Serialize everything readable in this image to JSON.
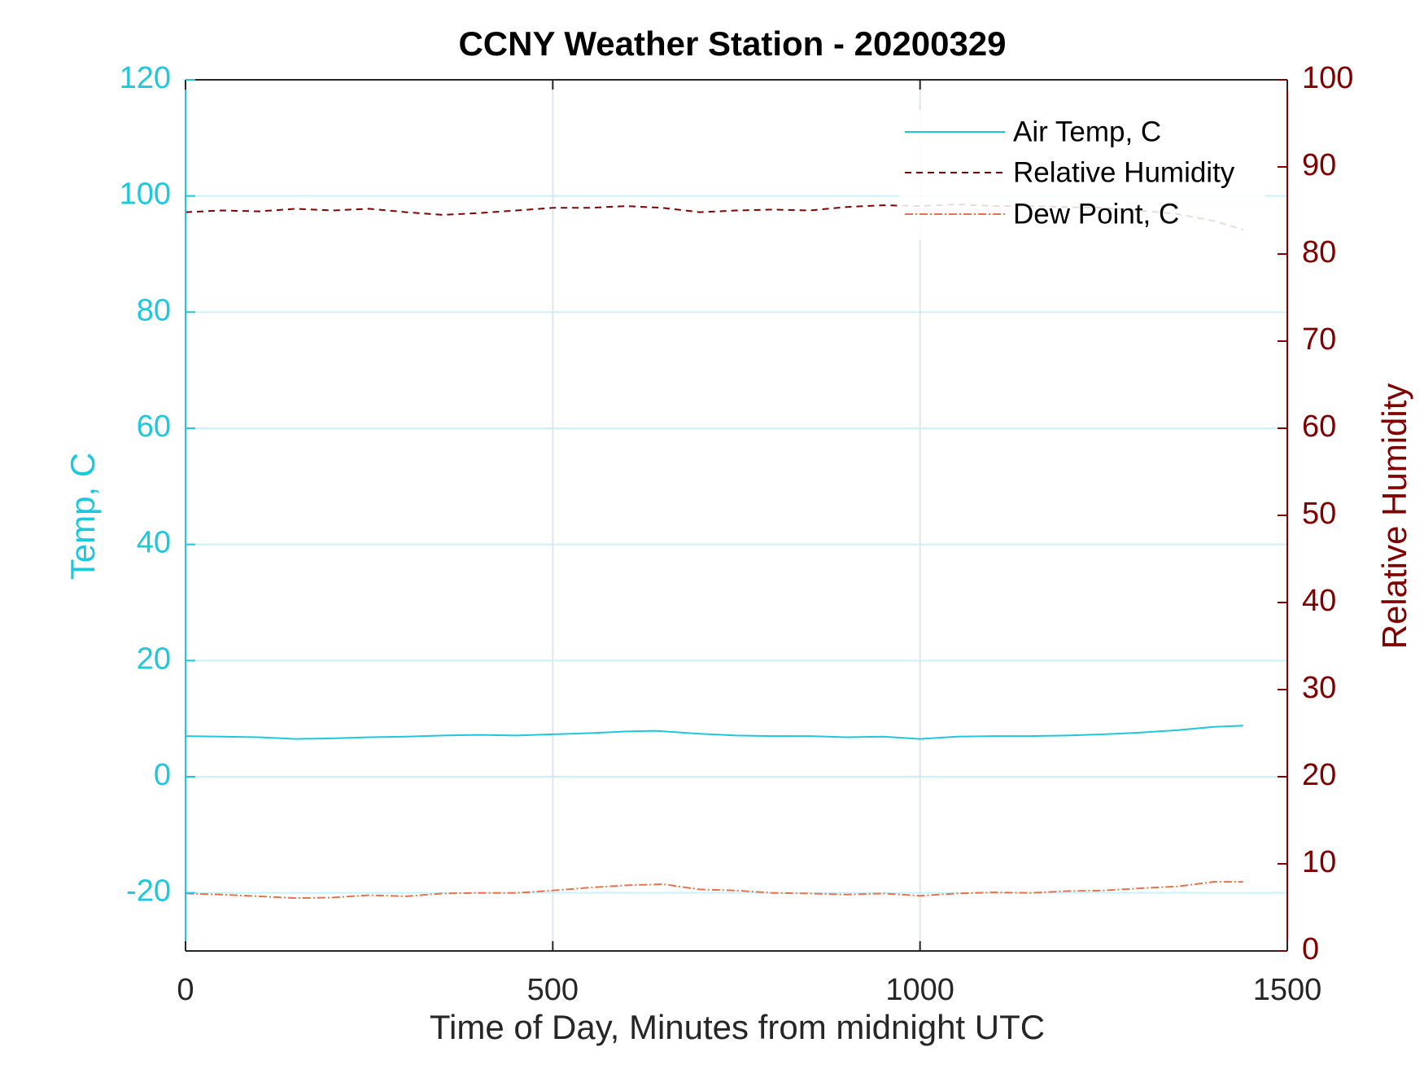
{
  "chart_data": {
    "type": "line",
    "title": "CCNY Weather Station - 20200329",
    "xlabel": "Time of Day, Minutes from midnight UTC",
    "ylabel_left": "Temp, C",
    "ylabel_right": "Relative Humidity",
    "xlim": [
      0,
      1500
    ],
    "ylim_left": [
      -30,
      120
    ],
    "ylim_right": [
      0,
      100
    ],
    "xticks": [
      0,
      500,
      1000,
      1500
    ],
    "yticks_left": [
      -20,
      0,
      20,
      40,
      60,
      80,
      100,
      120
    ],
    "yticks_right": [
      0,
      10,
      20,
      30,
      40,
      50,
      60,
      70,
      80,
      90,
      100
    ],
    "grid": true,
    "legend_position": "top-right",
    "colors": {
      "left_axis": "#1ec8dc",
      "right_axis": "#800000",
      "air_temp": "#1ec8dc",
      "humidity": "#800000",
      "dew_point": "#e8734a",
      "grid": "#dfe4ea",
      "grid_left": "#c9f1f7"
    },
    "series": [
      {
        "name": "Air Temp, C",
        "axis": "left",
        "style": "solid",
        "x": [
          0,
          50,
          100,
          150,
          200,
          250,
          300,
          350,
          400,
          450,
          500,
          550,
          600,
          640,
          700,
          750,
          800,
          850,
          900,
          950,
          1000,
          1050,
          1100,
          1150,
          1200,
          1250,
          1300,
          1350,
          1400,
          1440
        ],
        "y": [
          7.0,
          6.9,
          6.8,
          6.5,
          6.6,
          6.8,
          6.9,
          7.1,
          7.2,
          7.1,
          7.3,
          7.5,
          7.8,
          7.9,
          7.4,
          7.1,
          7.0,
          7.0,
          6.8,
          6.9,
          6.5,
          6.9,
          7.0,
          7.0,
          7.1,
          7.3,
          7.6,
          8.0,
          8.6,
          8.8
        ]
      },
      {
        "name": "Relative Humidity",
        "axis": "right",
        "style": "dashed",
        "x": [
          0,
          50,
          100,
          150,
          200,
          250,
          300,
          350,
          400,
          450,
          500,
          550,
          600,
          650,
          700,
          750,
          800,
          850,
          900,
          950,
          1000,
          1050,
          1100,
          1150,
          1200,
          1250,
          1300,
          1350,
          1400,
          1440
        ],
        "y": [
          84.8,
          85.0,
          84.9,
          85.2,
          85.0,
          85.2,
          84.8,
          84.5,
          84.7,
          85.0,
          85.3,
          85.3,
          85.5,
          85.3,
          84.8,
          85.0,
          85.1,
          85.0,
          85.4,
          85.6,
          85.5,
          85.7,
          85.5,
          85.5,
          85.4,
          85.3,
          85.0,
          84.6,
          83.8,
          82.8
        ]
      },
      {
        "name": "Dew Point, C",
        "axis": "left",
        "style": "dashdot",
        "x": [
          0,
          50,
          100,
          150,
          200,
          250,
          300,
          350,
          400,
          450,
          500,
          550,
          600,
          650,
          700,
          750,
          800,
          850,
          900,
          950,
          1000,
          1050,
          1100,
          1150,
          1200,
          1250,
          1300,
          1350,
          1400,
          1440
        ],
        "y": [
          -20.1,
          -20.3,
          -20.6,
          -20.9,
          -20.8,
          -20.4,
          -20.6,
          -20.1,
          -20.0,
          -20.0,
          -19.6,
          -19.1,
          -18.7,
          -18.5,
          -19.4,
          -19.6,
          -20.0,
          -20.1,
          -20.3,
          -20.1,
          -20.5,
          -20.1,
          -19.9,
          -20.0,
          -19.7,
          -19.6,
          -19.2,
          -18.9,
          -18.1,
          -18.1
        ]
      }
    ]
  }
}
